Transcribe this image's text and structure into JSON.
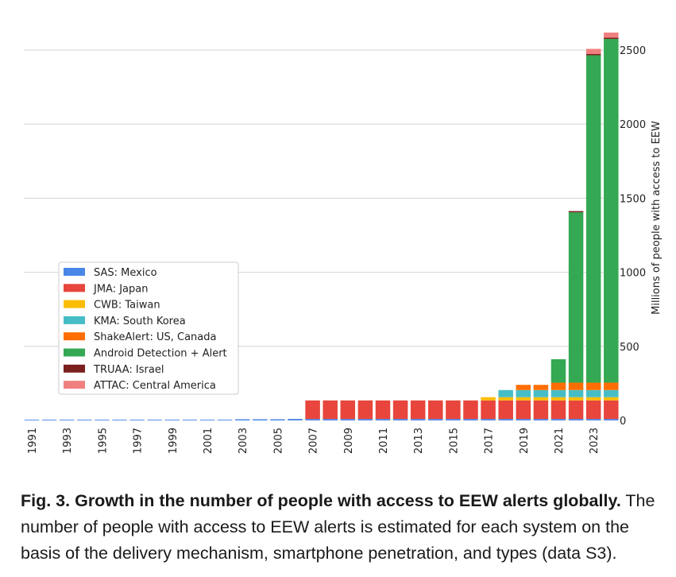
{
  "chart_data": {
    "type": "bar",
    "stacked": true,
    "title": "",
    "xlabel": "",
    "ylabel": "Millions of people with access to EEW",
    "ylim": [
      0,
      2650
    ],
    "yticks": [
      0,
      500,
      1000,
      1500,
      2000,
      2500
    ],
    "grid": true,
    "legend_position": "center-left",
    "categories": [
      "1991",
      "1992",
      "1993",
      "1994",
      "1995",
      "1996",
      "1997",
      "1998",
      "1999",
      "2000",
      "2001",
      "2002",
      "2003",
      "2004",
      "2005",
      "2006",
      "2007",
      "2008",
      "2009",
      "2010",
      "2011",
      "2012",
      "2013",
      "2014",
      "2015",
      "2016",
      "2017",
      "2018",
      "2019",
      "2020",
      "2021",
      "2022",
      "2023",
      "2024"
    ],
    "xtick_labels": [
      "1991",
      "1993",
      "1995",
      "1997",
      "1999",
      "2001",
      "2003",
      "2005",
      "2007",
      "2009",
      "2011",
      "2013",
      "2015",
      "2017",
      "2019",
      "2021",
      "2023"
    ],
    "series": [
      {
        "name": "SAS: Mexico",
        "color": "#4a86e8",
        "values": [
          5,
          5,
          5,
          5,
          5,
          5,
          5,
          5,
          5,
          5,
          5,
          5,
          8,
          8,
          8,
          10,
          10,
          10,
          10,
          10,
          10,
          10,
          10,
          10,
          10,
          10,
          10,
          10,
          10,
          10,
          10,
          10,
          10,
          10
        ]
      },
      {
        "name": "JMA: Japan",
        "color": "#e8453c",
        "values": [
          0,
          0,
          0,
          0,
          0,
          0,
          0,
          0,
          0,
          0,
          0,
          0,
          0,
          0,
          0,
          0,
          125,
          125,
          125,
          125,
          125,
          125,
          125,
          125,
          125,
          125,
          125,
          125,
          125,
          125,
          125,
          125,
          125,
          125
        ]
      },
      {
        "name": "CWB: Taiwan",
        "color": "#fbbc04",
        "values": [
          0,
          0,
          0,
          0,
          0,
          0,
          0,
          0,
          0,
          0,
          0,
          0,
          0,
          0,
          0,
          0,
          0,
          0,
          0,
          0,
          0,
          0,
          0,
          0,
          0,
          0,
          22,
          22,
          22,
          22,
          22,
          22,
          22,
          22
        ]
      },
      {
        "name": "KMA: South Korea",
        "color": "#46bdc6",
        "values": [
          0,
          0,
          0,
          0,
          0,
          0,
          0,
          0,
          0,
          0,
          0,
          0,
          0,
          0,
          0,
          0,
          0,
          0,
          0,
          0,
          0,
          0,
          0,
          0,
          0,
          0,
          0,
          48,
          48,
          48,
          48,
          48,
          48,
          48
        ]
      },
      {
        "name": "ShakeAlert: US, Canada",
        "color": "#ff6d01",
        "values": [
          0,
          0,
          0,
          0,
          0,
          0,
          0,
          0,
          0,
          0,
          0,
          0,
          0,
          0,
          0,
          0,
          0,
          0,
          0,
          0,
          0,
          0,
          0,
          0,
          0,
          0,
          0,
          0,
          35,
          35,
          50,
          50,
          50,
          50
        ]
      },
      {
        "name": "Android Detection + Alert",
        "color": "#34a853",
        "values": [
          0,
          0,
          0,
          0,
          0,
          0,
          0,
          0,
          0,
          0,
          0,
          0,
          0,
          0,
          0,
          0,
          0,
          0,
          0,
          0,
          0,
          0,
          0,
          0,
          0,
          0,
          0,
          0,
          0,
          0,
          158,
          1150,
          2210,
          2320
        ]
      },
      {
        "name": "TRUAA: Israel",
        "color": "#7b1e1e",
        "values": [
          0,
          0,
          0,
          0,
          0,
          0,
          0,
          0,
          0,
          0,
          0,
          0,
          0,
          0,
          0,
          0,
          0,
          0,
          0,
          0,
          0,
          0,
          0,
          0,
          0,
          0,
          0,
          0,
          0,
          0,
          0,
          8,
          8,
          8
        ]
      },
      {
        "name": "ATTAC: Central America",
        "color": "#f08080",
        "values": [
          0,
          0,
          0,
          0,
          0,
          0,
          0,
          0,
          0,
          0,
          0,
          0,
          0,
          0,
          0,
          0,
          0,
          0,
          0,
          0,
          0,
          0,
          0,
          0,
          0,
          0,
          0,
          0,
          0,
          0,
          0,
          0,
          35,
          35
        ]
      }
    ]
  },
  "caption": {
    "title": "Fig. 3. Growth in the number of people with access to EEW alerts globally.",
    "body": " The number of people with access to EEW alerts is estimated for each system on the basis of the delivery mechanism, smartphone penetration, and types (data S3)."
  }
}
